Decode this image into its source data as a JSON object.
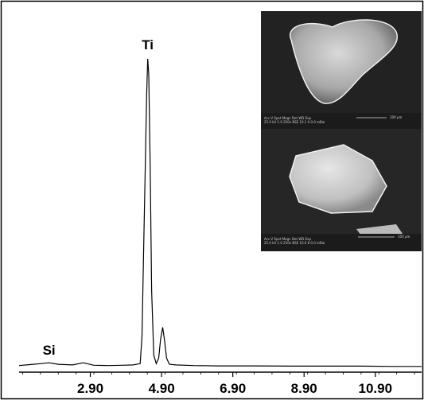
{
  "chart_data": {
    "type": "line",
    "title": "",
    "xlabel": "",
    "ylabel": "",
    "x_ticks": [
      "2.90",
      "4.90",
      "6.90",
      "8.90",
      "10.90"
    ],
    "xlim": [
      0.9,
      12.2
    ],
    "ylim": [
      0,
      100
    ],
    "grid": false,
    "peaks": [
      {
        "label": "Si",
        "x": 1.74,
        "y": 1.5
      },
      {
        "label": "Ti",
        "x": 4.51,
        "y": 100
      },
      {
        "label": "",
        "x": 4.93,
        "y": 13
      }
    ],
    "series": [
      {
        "x": [
          0.9,
          1.2,
          1.5,
          1.74,
          2.0,
          2.4,
          2.7,
          3.0,
          3.4,
          3.8,
          4.1,
          4.3,
          4.35,
          4.4,
          4.45,
          4.48,
          4.51,
          4.54,
          4.58,
          4.62,
          4.68,
          4.75,
          4.82,
          4.87,
          4.93,
          4.98,
          5.04,
          5.12,
          5.3,
          5.8,
          6.5,
          7.5,
          8.5,
          9.5,
          10.5,
          11.5,
          12.2
        ],
        "y": [
          0.6,
          0.9,
          1.2,
          1.5,
          1.0,
          0.8,
          1.5,
          0.7,
          0.6,
          0.7,
          0.8,
          1.2,
          10.0,
          40.0,
          70.0,
          88.0,
          100.0,
          95.0,
          65.0,
          25.0,
          4.0,
          1.2,
          3.0,
          9.0,
          13.0,
          9.0,
          3.0,
          1.0,
          0.8,
          0.6,
          0.5,
          0.5,
          0.4,
          0.4,
          0.4,
          0.3,
          0.3
        ]
      }
    ],
    "inset_images": [
      {
        "subject": "rounded triangular grain",
        "caption_left": [
          "Acc.V  Spot Magn   Det  WD  Exp",
          "25.0 kV 1.0   250x    BSE 10.1  0   0.0 mBar"
        ],
        "scalebar_label": "100 µm"
      },
      {
        "subject": "prismatic crystal grain",
        "caption_left": [
          "Acc.V  Spot Magn   Det  WD  Exp",
          "25.0 kV 1.0   250x    BSE 10.0 8   0.0 mBar"
        ],
        "scalebar_label": "100 µm"
      }
    ]
  }
}
